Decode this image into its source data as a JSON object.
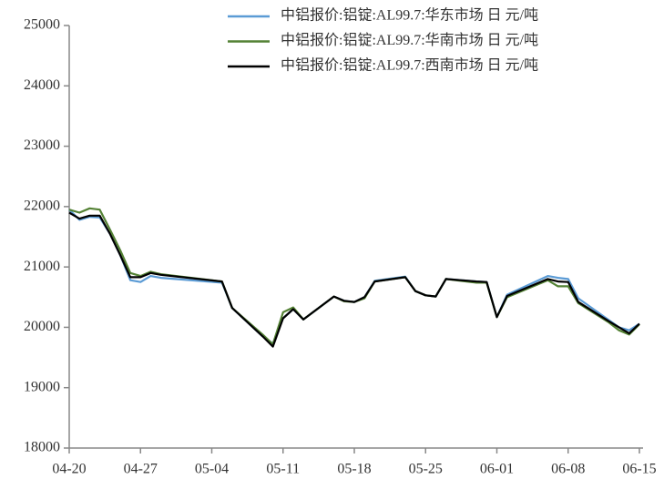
{
  "chart_data": {
    "type": "line",
    "x": [
      "04-20",
      "04-21",
      "04-22",
      "04-23",
      "04-24",
      "04-25",
      "04-26",
      "04-27",
      "04-28",
      "04-29",
      "05-05",
      "05-06",
      "05-09",
      "05-10",
      "05-11",
      "05-12",
      "05-13",
      "05-16",
      "05-17",
      "05-18",
      "05-19",
      "05-20",
      "05-23",
      "05-24",
      "05-25",
      "05-26",
      "05-27",
      "05-30",
      "05-31",
      "06-01",
      "06-02",
      "06-06",
      "06-07",
      "06-08",
      "06-09",
      "06-12",
      "06-13",
      "06-14",
      "06-15"
    ],
    "series": [
      {
        "name": "中铝报价:铝锭:AL99.7:华东市场 日 元/吨",
        "color": "#5b9bd5",
        "values": [
          21950,
          21780,
          21830,
          21820,
          21550,
          21200,
          20780,
          20750,
          20850,
          20820,
          20740,
          20320,
          19850,
          19730,
          20150,
          20300,
          20130,
          20510,
          20440,
          20420,
          20500,
          20770,
          20840,
          20600,
          20530,
          20510,
          20800,
          20760,
          20750,
          20170,
          20540,
          20850,
          20820,
          20800,
          20480,
          20120,
          20000,
          19950,
          20060
        ]
      },
      {
        "name": "中铝报价:铝锭:AL99.7:华南市场 日 元/吨",
        "color": "#548235",
        "values": [
          21950,
          21900,
          21970,
          21950,
          21620,
          21280,
          20900,
          20850,
          20920,
          20880,
          20760,
          20320,
          19880,
          19720,
          20250,
          20330,
          20130,
          20510,
          20430,
          20420,
          20480,
          20760,
          20830,
          20600,
          20530,
          20510,
          20800,
          20740,
          20740,
          20170,
          20500,
          20780,
          20680,
          20680,
          20400,
          20080,
          19950,
          19880,
          20050
        ]
      },
      {
        "name": "中铝报价:铝锭:AL99.7:西南市场 日 元/吨",
        "color": "#000000",
        "values": [
          21900,
          21800,
          21850,
          21850,
          21550,
          21200,
          20830,
          20830,
          20900,
          20870,
          20760,
          20320,
          19850,
          19680,
          20150,
          20300,
          20130,
          20510,
          20440,
          20420,
          20500,
          20760,
          20830,
          20600,
          20530,
          20510,
          20800,
          20760,
          20750,
          20170,
          20520,
          20800,
          20760,
          20750,
          20420,
          20100,
          20000,
          19900,
          20060
        ]
      }
    ],
    "xlim": [
      "04-20",
      "06-15"
    ],
    "xticks": [
      "04-20",
      "04-27",
      "05-04",
      "05-11",
      "05-18",
      "05-25",
      "06-01",
      "06-08",
      "06-15"
    ],
    "ylim": [
      18000,
      25000
    ],
    "yticks": [
      18000,
      19000,
      20000,
      21000,
      22000,
      23000,
      24000,
      25000
    ],
    "grid": false,
    "legend": "top-right"
  }
}
